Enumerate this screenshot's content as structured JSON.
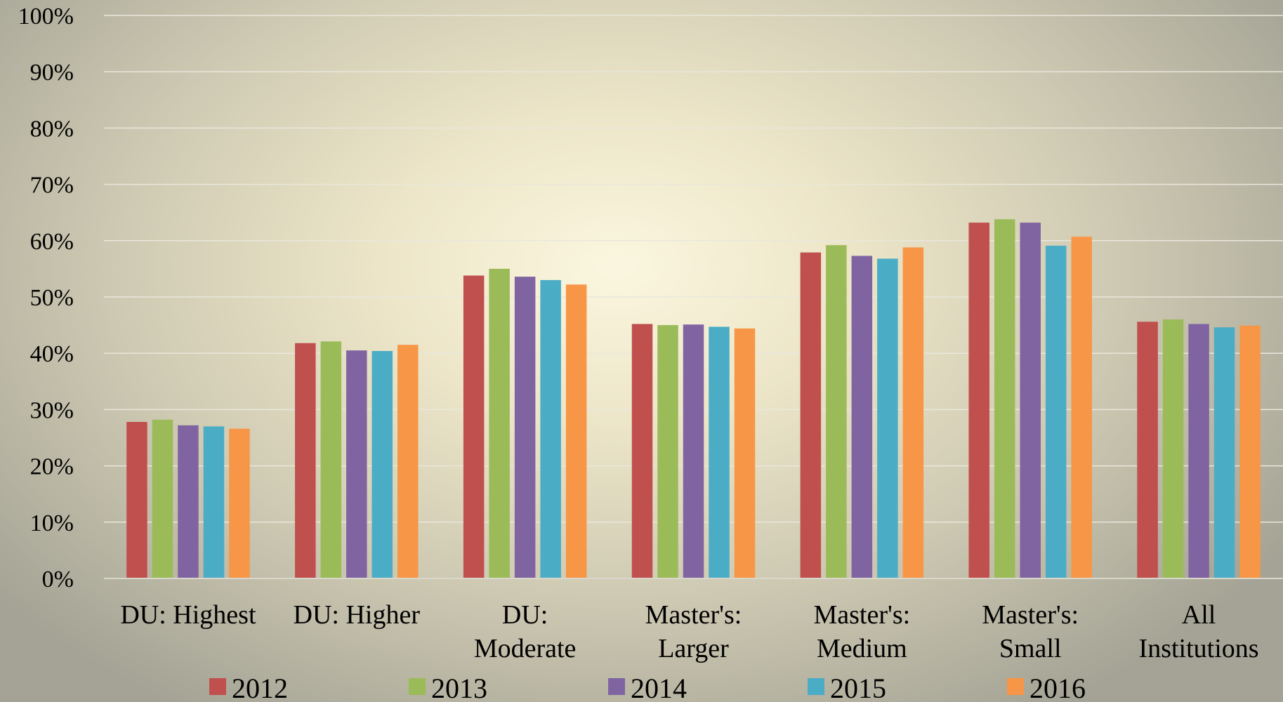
{
  "chart_data": {
    "type": "bar",
    "title": "",
    "xlabel": "",
    "ylabel": "",
    "ylim": [
      0,
      100
    ],
    "yticks": [
      "0%",
      "10%",
      "20%",
      "30%",
      "40%",
      "50%",
      "60%",
      "70%",
      "80%",
      "90%",
      "100%"
    ],
    "categories": [
      [
        "DU: Highest"
      ],
      [
        "DU: Higher"
      ],
      [
        "DU:",
        "Moderate"
      ],
      [
        "Master's:",
        "Larger"
      ],
      [
        "Master's:",
        "Medium"
      ],
      [
        "Master's:",
        "Small"
      ],
      [
        "All",
        "Institutions"
      ]
    ],
    "grid": true,
    "legend_position": "bottom",
    "series": [
      {
        "name": "2012",
        "color": "#c0504d",
        "values": [
          27.8,
          41.8,
          53.8,
          45.2,
          57.9,
          63.2,
          45.6
        ]
      },
      {
        "name": "2013",
        "color": "#9bbb59",
        "values": [
          28.2,
          42.1,
          55.0,
          45.0,
          59.2,
          63.8,
          46.0
        ]
      },
      {
        "name": "2014",
        "color": "#8064a2",
        "values": [
          27.2,
          40.5,
          53.6,
          45.1,
          57.3,
          63.2,
          45.2
        ]
      },
      {
        "name": "2015",
        "color": "#4bacc6",
        "values": [
          27.0,
          40.4,
          53.0,
          44.7,
          56.8,
          59.1,
          44.6
        ]
      },
      {
        "name": "2016",
        "color": "#f79646",
        "values": [
          26.6,
          41.5,
          52.2,
          44.4,
          58.8,
          60.7,
          44.9
        ]
      }
    ]
  }
}
